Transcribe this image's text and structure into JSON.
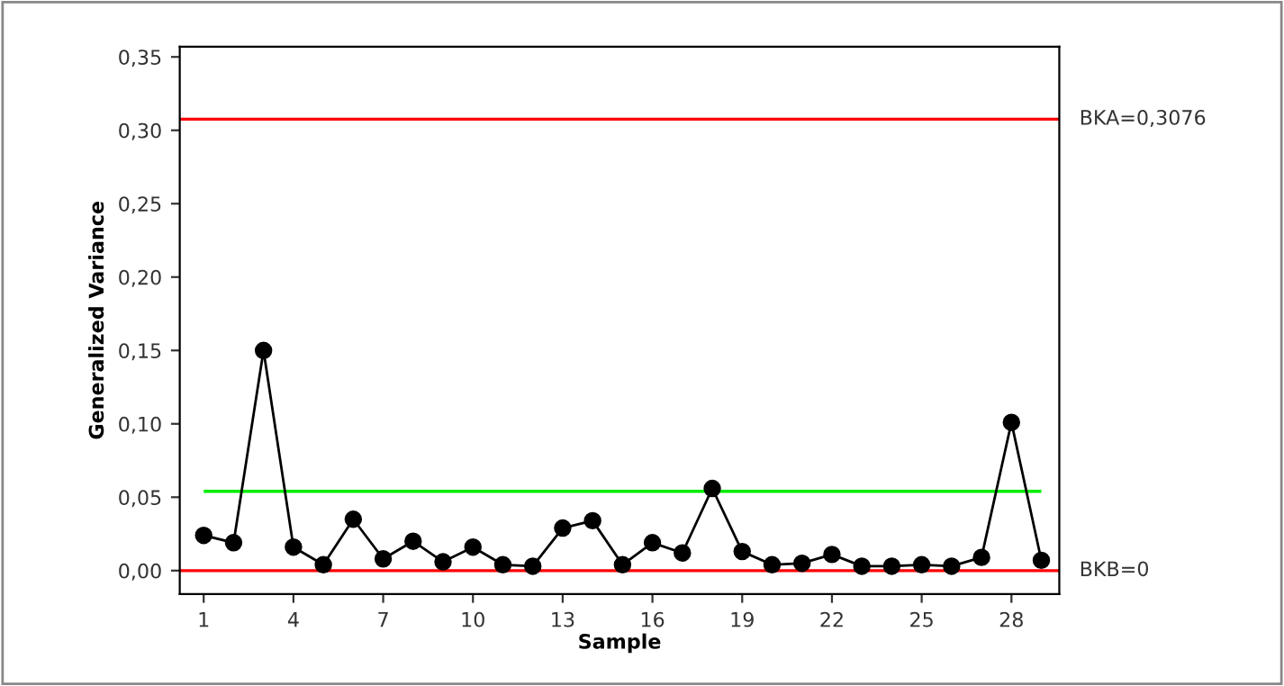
{
  "chart_data": {
    "type": "line",
    "xlabel": "Sample",
    "ylabel": "Generalized Variance",
    "x": [
      1,
      2,
      3,
      4,
      5,
      6,
      7,
      8,
      9,
      10,
      11,
      12,
      13,
      14,
      15,
      16,
      17,
      18,
      19,
      20,
      21,
      22,
      23,
      24,
      25,
      26,
      27,
      28,
      29
    ],
    "series": [
      {
        "color": "#000000",
        "values": [
          0.024,
          0.019,
          0.15,
          0.016,
          0.004,
          0.035,
          0.008,
          0.02,
          0.006,
          0.016,
          0.004,
          0.003,
          0.029,
          0.034,
          0.004,
          0.019,
          0.012,
          0.056,
          0.013,
          0.004,
          0.005,
          0.011,
          0.003,
          0.003,
          0.004,
          0.003,
          0.009,
          0.101,
          0.007
        ]
      }
    ],
    "marker": "circle",
    "line_style": "solid",
    "grid": false,
    "legend": false,
    "xlim": [
      0.2,
      29.6
    ],
    "ylim": [
      -0.016,
      0.357
    ],
    "xticks": [
      1,
      4,
      7,
      10,
      13,
      16,
      19,
      22,
      25,
      28
    ],
    "yticks": [
      {
        "value": 0,
        "label": "0,00"
      },
      {
        "value": 0.05,
        "label": "0,05"
      },
      {
        "value": 0.1,
        "label": "0,10"
      },
      {
        "value": 0.15,
        "label": "0,15"
      },
      {
        "value": 0.2,
        "label": "0,20"
      },
      {
        "value": 0.25,
        "label": "0,25"
      },
      {
        "value": 0.3,
        "label": "0,30"
      },
      {
        "value": 0.35,
        "label": "0,35"
      }
    ],
    "ref_lines": [
      {
        "axis": "y",
        "value": 0.3076,
        "label": "BKA=0,3076",
        "color": "#ff0000"
      },
      {
        "axis": "y",
        "value": 0,
        "label": "BKB=0",
        "color": "#ff0000"
      },
      {
        "axis": "y",
        "value": 0.054,
        "color": "#00ee00"
      }
    ]
  }
}
